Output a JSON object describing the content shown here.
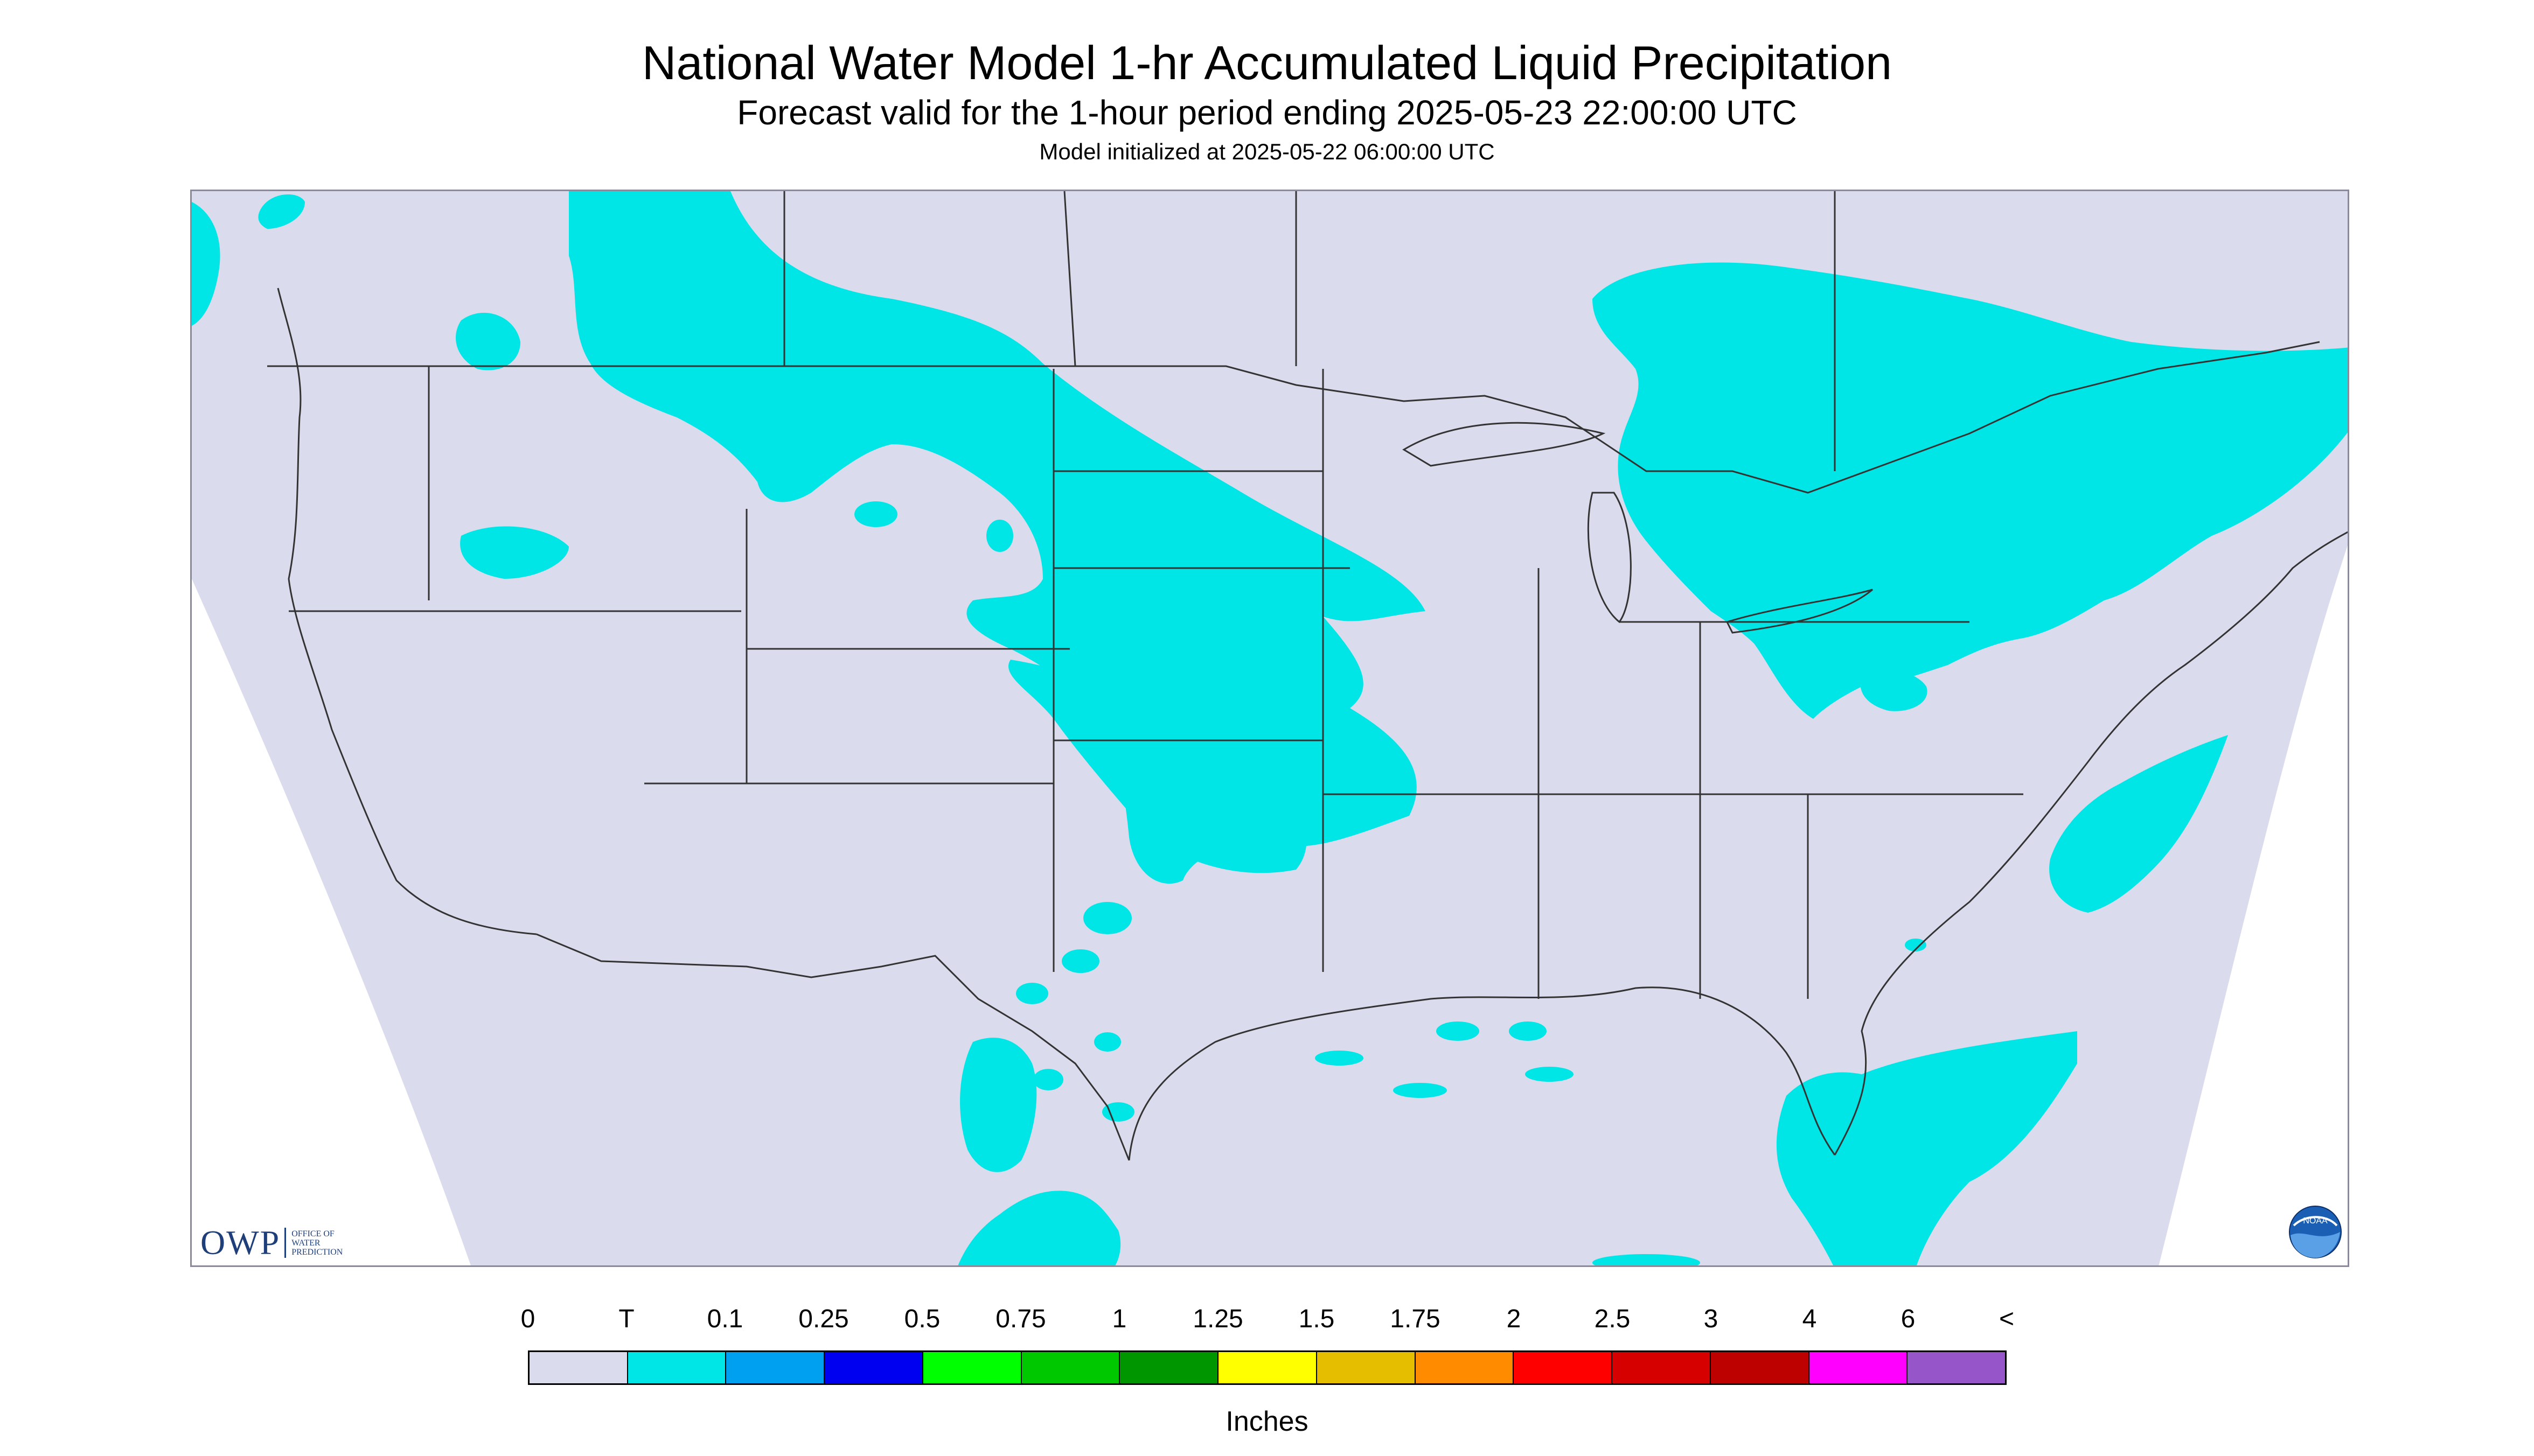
{
  "header": {
    "title": "National Water Model 1-hr Accumulated Liquid Precipitation",
    "subtitle": "Forecast valid for the 1-hour period ending 2025-05-23 22:00:00 UTC",
    "init": "Model initialized at 2025-05-22 06:00:00 UTC"
  },
  "colors": {
    "no_data": "#ffffff",
    "domain_fill": "#dadbed",
    "precip_trace": "#00e6e6",
    "boundary": "#333333"
  },
  "legend": {
    "labels": [
      "0",
      "T",
      "0.1",
      "0.25",
      "0.5",
      "0.75",
      "1",
      "1.25",
      "1.5",
      "1.75",
      "2",
      "2.5",
      "3",
      "4",
      "6",
      "<"
    ],
    "colors": [
      "#dadbed",
      "#00e6e6",
      "#00a0f0",
      "#0000f0",
      "#00ff00",
      "#00c800",
      "#009600",
      "#ffff00",
      "#e6be00",
      "#ff8c00",
      "#ff0000",
      "#d70000",
      "#bd0000",
      "#ff00ff",
      "#9655c8"
    ],
    "units": "Inches"
  },
  "logos": {
    "owp_mark": "OWP",
    "owp_name": [
      "OFFICE OF",
      "WATER",
      "PREDICTION"
    ],
    "noaa": "NOAA"
  }
}
